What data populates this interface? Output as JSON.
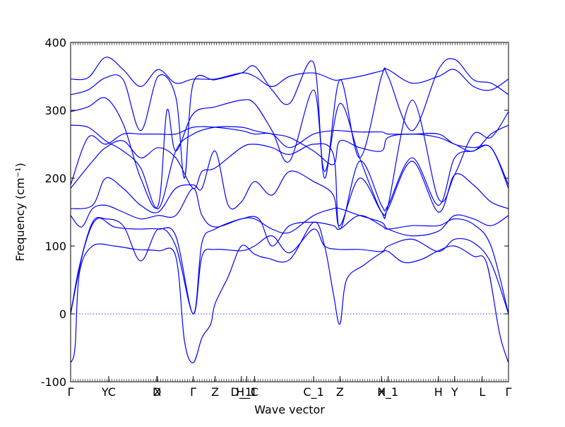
{
  "chart_data": {
    "type": "line",
    "title": "",
    "xlabel": "Wave vector",
    "ylabel": "Frequency (cm⁻¹)",
    "ylim": [
      -100,
      400
    ],
    "yticks": [
      -100,
      0,
      100,
      200,
      300,
      400
    ],
    "zero_line": true,
    "grid": false,
    "line_color": "#0000ff",
    "xlim": [
      0,
      1
    ],
    "x_ticks": [
      {
        "pos": 0.0,
        "label": "Γ"
      },
      {
        "pos": 0.087,
        "label": "YC"
      },
      {
        "pos": 0.197,
        "label": "D"
      },
      {
        "pos": 0.198,
        "label": "X"
      },
      {
        "pos": 0.28,
        "label": "Γ"
      },
      {
        "pos": 0.33,
        "label": "Z"
      },
      {
        "pos": 0.39,
        "label": "D_1"
      },
      {
        "pos": 0.402,
        "label": "H_1"
      },
      {
        "pos": 0.42,
        "label": "C"
      },
      {
        "pos": 0.555,
        "label": "C_1"
      },
      {
        "pos": 0.615,
        "label": "Z"
      },
      {
        "pos": 0.71,
        "label": "H"
      },
      {
        "pos": 0.725,
        "label": "X_1"
      },
      {
        "pos": 0.84,
        "label": "H"
      },
      {
        "pos": 0.877,
        "label": "Y"
      },
      {
        "pos": 0.94,
        "label": "L"
      },
      {
        "pos": 1.0,
        "label": "Γ"
      }
    ],
    "series": [
      {
        "values": [
          [
            0,
            -72
          ],
          [
            0.01,
            -50
          ],
          [
            0.02,
            60
          ],
          [
            0.05,
            100
          ],
          [
            0.1,
            100
          ],
          [
            0.15,
            95
          ],
          [
            0.2,
            93
          ],
          [
            0.24,
            85
          ],
          [
            0.26,
            -40
          ],
          [
            0.28,
            -72
          ],
          [
            0.3,
            -35
          ],
          [
            0.32,
            -15
          ],
          [
            0.33,
            15
          ],
          [
            0.36,
            55
          ],
          [
            0.39,
            100
          ],
          [
            0.42,
            88
          ],
          [
            0.45,
            82
          ],
          [
            0.5,
            80
          ],
          [
            0.555,
            135
          ],
          [
            0.58,
            100
          ],
          [
            0.6,
            30
          ],
          [
            0.615,
            -15
          ],
          [
            0.63,
            50
          ],
          [
            0.67,
            72
          ],
          [
            0.71,
            90
          ],
          [
            0.725,
            92
          ],
          [
            0.76,
            76
          ],
          [
            0.8,
            80
          ],
          [
            0.84,
            93
          ],
          [
            0.877,
            100
          ],
          [
            0.92,
            85
          ],
          [
            0.95,
            75
          ],
          [
            0.98,
            -30
          ],
          [
            1.0,
            -72
          ]
        ]
      },
      {
        "values": [
          [
            0,
            0
          ],
          [
            0.02,
            70
          ],
          [
            0.05,
            135
          ],
          [
            0.08,
            140
          ],
          [
            0.12,
            130
          ],
          [
            0.16,
            78
          ],
          [
            0.2,
            125
          ],
          [
            0.24,
            100
          ],
          [
            0.28,
            0
          ],
          [
            0.3,
            85
          ],
          [
            0.33,
            95
          ],
          [
            0.39,
            93
          ],
          [
            0.42,
            100
          ],
          [
            0.46,
            115
          ],
          [
            0.5,
            90
          ],
          [
            0.555,
            125
          ],
          [
            0.58,
            100
          ],
          [
            0.615,
            95
          ],
          [
            0.66,
            95
          ],
          [
            0.71,
            92
          ],
          [
            0.725,
            100
          ],
          [
            0.78,
            110
          ],
          [
            0.84,
            92
          ],
          [
            0.877,
            110
          ],
          [
            0.92,
            105
          ],
          [
            0.96,
            75
          ],
          [
            1.0,
            0
          ]
        ]
      },
      {
        "values": [
          [
            0,
            0
          ],
          [
            0.03,
            95
          ],
          [
            0.06,
            140
          ],
          [
            0.1,
            128
          ],
          [
            0.15,
            125
          ],
          [
            0.2,
            125
          ],
          [
            0.24,
            115
          ],
          [
            0.28,
            0
          ],
          [
            0.3,
            105
          ],
          [
            0.33,
            125
          ],
          [
            0.39,
            140
          ],
          [
            0.43,
            140
          ],
          [
            0.46,
            100
          ],
          [
            0.5,
            130
          ],
          [
            0.555,
            135
          ],
          [
            0.6,
            130
          ],
          [
            0.615,
            125
          ],
          [
            0.66,
            145
          ],
          [
            0.71,
            130
          ],
          [
            0.725,
            125
          ],
          [
            0.78,
            130
          ],
          [
            0.84,
            130
          ],
          [
            0.877,
            140
          ],
          [
            0.92,
            132
          ],
          [
            0.96,
            100
          ],
          [
            1.0,
            0
          ]
        ]
      },
      {
        "values": [
          [
            0,
            145
          ],
          [
            0.025,
            128
          ],
          [
            0.05,
            155
          ],
          [
            0.08,
            160
          ],
          [
            0.12,
            150
          ],
          [
            0.16,
            140
          ],
          [
            0.2,
            145
          ],
          [
            0.24,
            145
          ],
          [
            0.28,
            185
          ],
          [
            0.3,
            145
          ],
          [
            0.33,
            128
          ],
          [
            0.39,
            140
          ],
          [
            0.42,
            140
          ],
          [
            0.46,
            125
          ],
          [
            0.5,
            120
          ],
          [
            0.555,
            145
          ],
          [
            0.6,
            155
          ],
          [
            0.615,
            155
          ],
          [
            0.66,
            145
          ],
          [
            0.71,
            135
          ],
          [
            0.725,
            125
          ],
          [
            0.78,
            115
          ],
          [
            0.84,
            122
          ],
          [
            0.877,
            145
          ],
          [
            0.92,
            140
          ],
          [
            0.96,
            130
          ],
          [
            1.0,
            145
          ]
        ]
      },
      {
        "values": [
          [
            0,
            155
          ],
          [
            0.05,
            160
          ],
          [
            0.08,
            200
          ],
          [
            0.12,
            185
          ],
          [
            0.16,
            160
          ],
          [
            0.2,
            150
          ],
          [
            0.24,
            185
          ],
          [
            0.28,
            190
          ],
          [
            0.3,
            185
          ],
          [
            0.33,
            240
          ],
          [
            0.36,
            160
          ],
          [
            0.39,
            165
          ],
          [
            0.42,
            195
          ],
          [
            0.46,
            175
          ],
          [
            0.5,
            210
          ],
          [
            0.555,
            195
          ],
          [
            0.6,
            175
          ],
          [
            0.615,
            130
          ],
          [
            0.66,
            200
          ],
          [
            0.71,
            150
          ],
          [
            0.725,
            155
          ],
          [
            0.78,
            225
          ],
          [
            0.84,
            150
          ],
          [
            0.877,
            205
          ],
          [
            0.92,
            190
          ],
          [
            0.96,
            165
          ],
          [
            1.0,
            155
          ]
        ]
      },
      {
        "values": [
          [
            0,
            185
          ],
          [
            0.05,
            225
          ],
          [
            0.08,
            245
          ],
          [
            0.12,
            255
          ],
          [
            0.16,
            230
          ],
          [
            0.2,
            245
          ],
          [
            0.24,
            230
          ],
          [
            0.28,
            185
          ],
          [
            0.3,
            210
          ],
          [
            0.33,
            215
          ],
          [
            0.39,
            245
          ],
          [
            0.42,
            250
          ],
          [
            0.46,
            245
          ],
          [
            0.5,
            235
          ],
          [
            0.555,
            250
          ],
          [
            0.6,
            235
          ],
          [
            0.615,
            125
          ],
          [
            0.66,
            225
          ],
          [
            0.71,
            160
          ],
          [
            0.725,
            160
          ],
          [
            0.78,
            230
          ],
          [
            0.84,
            160
          ],
          [
            0.877,
            230
          ],
          [
            0.92,
            240
          ],
          [
            0.96,
            245
          ],
          [
            1.0,
            185
          ]
        ]
      },
      {
        "values": [
          [
            0,
            190
          ],
          [
            0.04,
            260
          ],
          [
            0.08,
            250
          ],
          [
            0.12,
            265
          ],
          [
            0.16,
            265
          ],
          [
            0.2,
            265
          ],
          [
            0.24,
            265
          ],
          [
            0.28,
            275
          ],
          [
            0.33,
            275
          ],
          [
            0.39,
            270
          ],
          [
            0.42,
            265
          ],
          [
            0.46,
            265
          ],
          [
            0.5,
            245
          ],
          [
            0.555,
            265
          ],
          [
            0.6,
            270
          ],
          [
            0.615,
            270
          ],
          [
            0.66,
            268
          ],
          [
            0.71,
            268
          ],
          [
            0.725,
            265
          ],
          [
            0.78,
            265
          ],
          [
            0.84,
            265
          ],
          [
            0.877,
            250
          ],
          [
            0.92,
            245
          ],
          [
            0.96,
            245
          ],
          [
            1.0,
            190
          ]
        ]
      },
      {
        "values": [
          [
            0,
            278
          ],
          [
            0.04,
            275
          ],
          [
            0.08,
            255
          ],
          [
            0.12,
            240
          ],
          [
            0.16,
            215
          ],
          [
            0.2,
            155
          ],
          [
            0.24,
            240
          ],
          [
            0.28,
            265
          ],
          [
            0.33,
            275
          ],
          [
            0.39,
            275
          ],
          [
            0.42,
            270
          ],
          [
            0.46,
            265
          ],
          [
            0.5,
            260
          ],
          [
            0.555,
            240
          ],
          [
            0.6,
            220
          ],
          [
            0.615,
            255
          ],
          [
            0.66,
            245
          ],
          [
            0.71,
            240
          ],
          [
            0.725,
            260
          ],
          [
            0.78,
            265
          ],
          [
            0.84,
            260
          ],
          [
            0.877,
            250
          ],
          [
            0.92,
            240
          ],
          [
            0.96,
            265
          ],
          [
            1.0,
            278
          ]
        ]
      },
      {
        "values": [
          [
            0,
            298
          ],
          [
            0.04,
            305
          ],
          [
            0.08,
            318
          ],
          [
            0.12,
            280
          ],
          [
            0.16,
            200
          ],
          [
            0.2,
            160
          ],
          [
            0.22,
            300
          ],
          [
            0.24,
            240
          ],
          [
            0.28,
            295
          ],
          [
            0.33,
            305
          ],
          [
            0.39,
            315
          ],
          [
            0.42,
            310
          ],
          [
            0.46,
            270
          ],
          [
            0.5,
            225
          ],
          [
            0.555,
            330
          ],
          [
            0.58,
            210
          ],
          [
            0.615,
            310
          ],
          [
            0.66,
            230
          ],
          [
            0.71,
            150
          ],
          [
            0.725,
            160
          ],
          [
            0.78,
            315
          ],
          [
            0.84,
            170
          ],
          [
            0.877,
            205
          ],
          [
            0.92,
            265
          ],
          [
            0.96,
            260
          ],
          [
            1.0,
            298
          ]
        ]
      },
      {
        "values": [
          [
            0,
            323
          ],
          [
            0.04,
            330
          ],
          [
            0.08,
            348
          ],
          [
            0.12,
            345
          ],
          [
            0.16,
            270
          ],
          [
            0.2,
            350
          ],
          [
            0.24,
            320
          ],
          [
            0.26,
            200
          ],
          [
            0.28,
            340
          ],
          [
            0.33,
            345
          ],
          [
            0.39,
            355
          ],
          [
            0.42,
            365
          ],
          [
            0.46,
            330
          ],
          [
            0.5,
            310
          ],
          [
            0.555,
            370
          ],
          [
            0.58,
            200
          ],
          [
            0.615,
            345
          ],
          [
            0.66,
            230
          ],
          [
            0.71,
            350
          ],
          [
            0.725,
            350
          ],
          [
            0.78,
            270
          ],
          [
            0.84,
            360
          ],
          [
            0.877,
            375
          ],
          [
            0.92,
            345
          ],
          [
            0.96,
            340
          ],
          [
            1.0,
            323
          ]
        ]
      },
      {
        "values": [
          [
            0,
            346
          ],
          [
            0.04,
            348
          ],
          [
            0.08,
            378
          ],
          [
            0.12,
            360
          ],
          [
            0.16,
            335
          ],
          [
            0.2,
            360
          ],
          [
            0.24,
            340
          ],
          [
            0.28,
            346
          ],
          [
            0.33,
            346
          ],
          [
            0.39,
            355
          ],
          [
            0.42,
            350
          ],
          [
            0.46,
            335
          ],
          [
            0.5,
            350
          ],
          [
            0.555,
            355
          ],
          [
            0.6,
            345
          ],
          [
            0.615,
            345
          ],
          [
            0.66,
            350
          ],
          [
            0.71,
            358
          ],
          [
            0.725,
            360
          ],
          [
            0.78,
            340
          ],
          [
            0.84,
            350
          ],
          [
            0.877,
            360
          ],
          [
            0.92,
            335
          ],
          [
            0.96,
            330
          ],
          [
            1.0,
            346
          ]
        ]
      }
    ]
  }
}
